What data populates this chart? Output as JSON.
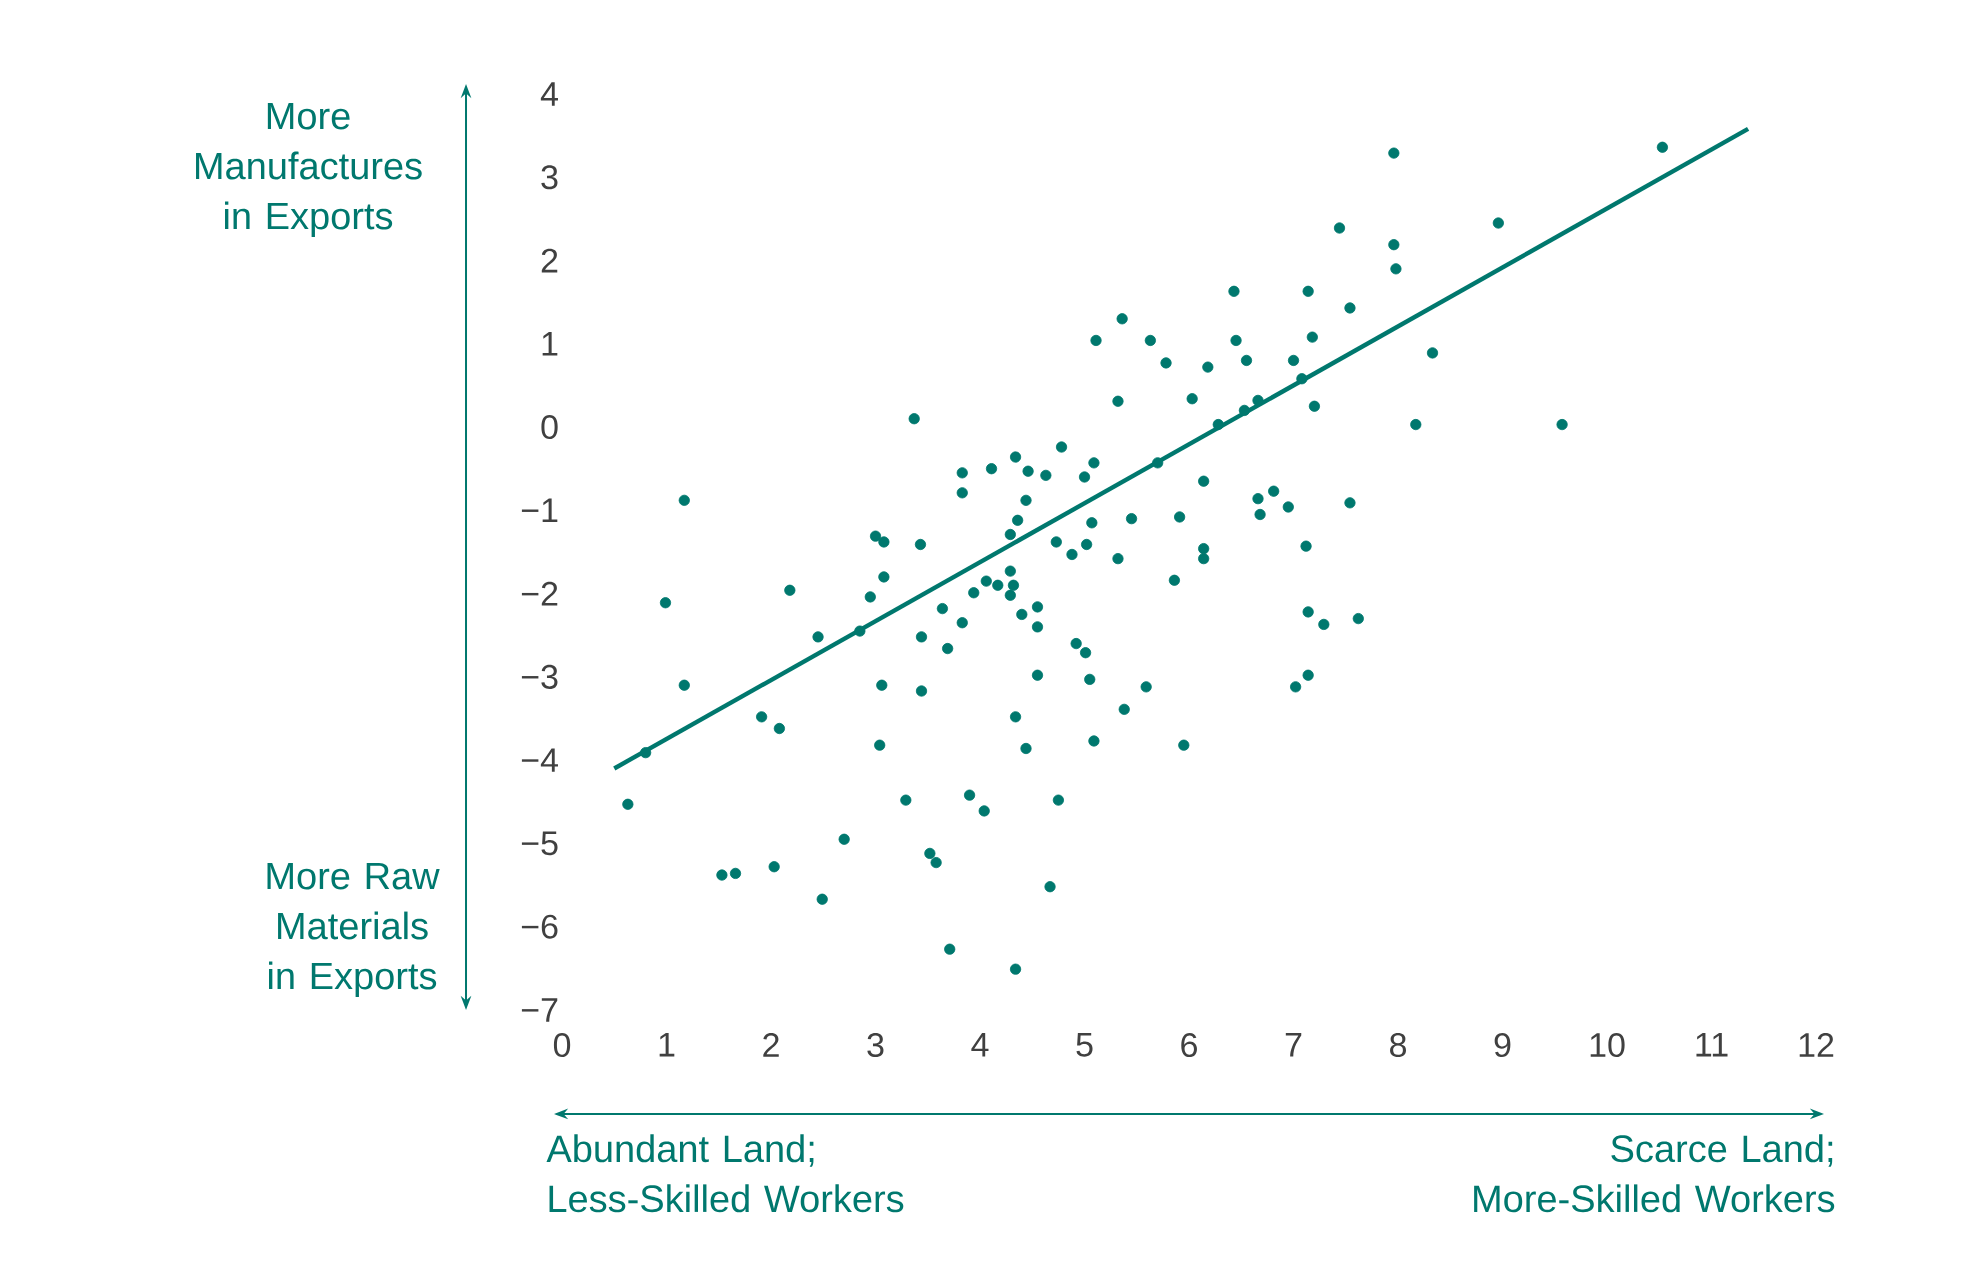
{
  "chart_data": {
    "type": "scatter",
    "xlim": [
      0,
      12
    ],
    "ylim": [
      -7,
      4
    ],
    "xticks": [
      0,
      1,
      2,
      3,
      4,
      5,
      6,
      7,
      8,
      9,
      10,
      11,
      12
    ],
    "yticks": [
      {
        "value": -7,
        "label": "−7"
      },
      {
        "value": -6,
        "label": "−6"
      },
      {
        "value": -5,
        "label": "−5"
      },
      {
        "value": -4,
        "label": "−4"
      },
      {
        "value": -3,
        "label": "−3"
      },
      {
        "value": -2,
        "label": "−2"
      },
      {
        "value": -1,
        "label": "−1"
      },
      0,
      1,
      2,
      3,
      4
    ],
    "annotations": [
      "More Manufactures in Exports",
      "More Raw Materials in Exports",
      "Abundant Land; Less-Skilled Workers",
      "Scarce Land; More-Skilled Workers"
    ],
    "series": [
      {
        "marker": "circle",
        "color": "#00786e",
        "x": [
          3.37,
          1.17,
          3.83,
          3.83,
          4.11,
          4.34,
          4.46,
          4.44,
          4.36,
          4.29,
          3.0,
          3.08,
          3.43,
          2.18,
          0.99,
          3.08,
          2.95,
          2.45,
          2.85,
          3.64,
          4.06,
          4.17,
          4.29,
          4.29,
          4.32,
          3.94,
          4.4,
          3.44,
          3.83,
          3.69,
          4.55,
          1.17,
          3.06,
          3.44,
          4.55,
          1.91,
          2.08,
          3.04,
          4.34,
          4.44,
          0.8,
          0.63,
          3.29,
          3.9,
          4.04,
          2.7,
          3.52,
          3.58,
          1.53,
          1.66,
          2.03,
          2.49,
          3.71,
          4.34,
          4.63,
          4.78,
          5.0,
          5.09,
          4.73,
          4.88,
          5.02,
          5.07,
          5.32,
          5.45,
          5.7,
          5.91,
          6.14,
          6.14,
          6.14,
          5.86,
          5.32,
          5.11,
          5.36,
          5.63,
          5.78,
          6.03,
          6.18,
          6.28,
          6.43,
          6.45,
          6.55,
          6.53,
          6.66,
          6.66,
          6.68,
          6.81,
          6.95,
          7.0,
          7.08,
          7.14,
          7.18,
          7.2,
          7.12,
          7.14,
          7.29,
          7.62,
          7.54,
          7.14,
          7.02,
          7.44,
          7.54,
          7.96,
          7.96,
          7.98,
          8.33,
          8.17,
          4.55,
          4.92,
          5.01,
          5.05,
          5.59,
          5.38,
          5.09,
          5.95,
          4.75,
          4.67,
          10.53,
          8.96,
          9.57
        ],
        "values": [
          0.1,
          -0.88,
          -0.55,
          -0.79,
          -0.5,
          -0.36,
          -0.53,
          -0.88,
          -1.12,
          -1.29,
          -1.31,
          -1.38,
          -1.41,
          -1.96,
          -2.11,
          -1.8,
          -2.04,
          -2.52,
          -2.45,
          -2.18,
          -1.85,
          -1.9,
          -2.02,
          -1.73,
          -1.9,
          -1.99,
          -2.25,
          -2.52,
          -2.35,
          -2.66,
          -2.16,
          -3.1,
          -3.1,
          -3.17,
          -2.98,
          -3.48,
          -3.62,
          -3.82,
          -3.48,
          -3.86,
          -3.91,
          -4.53,
          -4.48,
          -4.42,
          -4.61,
          -4.95,
          -5.12,
          -5.23,
          -5.38,
          -5.36,
          -5.28,
          -5.67,
          -6.27,
          -6.51,
          -0.58,
          -0.24,
          -0.6,
          -0.43,
          -1.38,
          -1.53,
          -1.41,
          -1.15,
          -1.58,
          -1.1,
          -0.43,
          -1.08,
          -0.65,
          -1.46,
          -1.58,
          -1.84,
          0.31,
          1.04,
          1.3,
          1.04,
          0.77,
          0.34,
          0.72,
          0.03,
          1.63,
          1.04,
          0.8,
          0.2,
          0.32,
          -0.86,
          -1.05,
          -0.77,
          -0.96,
          0.8,
          0.58,
          1.63,
          1.08,
          0.25,
          -1.43,
          -2.22,
          -2.37,
          -2.3,
          -0.91,
          -2.98,
          -3.12,
          2.39,
          1.43,
          3.29,
          2.19,
          1.9,
          0.89,
          0.03,
          -2.4,
          -2.6,
          -2.71,
          -3.03,
          -3.12,
          -3.39,
          -3.77,
          -3.82,
          -4.48,
          -5.52,
          3.36,
          2.45,
          0.03
        ]
      },
      {
        "type": "line",
        "marker": "none",
        "color": "#00786e",
        "x": [
          0.5,
          11.35
        ],
        "values": [
          -4.1,
          3.58
        ]
      }
    ]
  }
}
